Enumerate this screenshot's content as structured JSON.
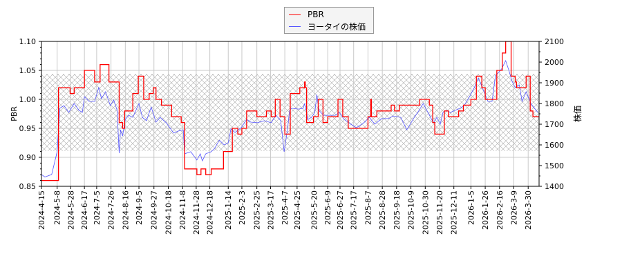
{
  "chart_data": {
    "type": "line",
    "title": "",
    "xlabel": "",
    "ylabel_left": "PBR",
    "ylabel_right": "株価",
    "xlim": [
      "2024-04-15",
      "2026-04-15"
    ],
    "ylim_left": [
      0.85,
      1.1
    ],
    "ylim_right": [
      1400,
      2100
    ],
    "yticks_left": [
      "0.85",
      "0.90",
      "0.95",
      "1.00",
      "1.05",
      "1.10"
    ],
    "yticks_right": [
      "1400",
      "1500",
      "1600",
      "1700",
      "1800",
      "1900",
      "2000",
      "2100"
    ],
    "xticks": [
      "2024-4-15",
      "2024-5-8",
      "2024-5-28",
      "2024-6-17",
      "2024-7-5",
      "2024-7-26",
      "2024-8-16",
      "2024-9-5",
      "2024-9-27",
      "2024-10-18",
      "2024-11-8",
      "2024-11-28",
      "2024-12-18",
      "2025-1-14",
      "2025-2-3",
      "2025-2-25",
      "2025-3-17",
      "2025-4-7",
      "2025-4-25",
      "2025-5-20",
      "2025-6-9",
      "2025-6-27",
      "2025-7-17",
      "2025-8-7",
      "2025-8-28",
      "2025-9-18",
      "2025-10-9",
      "2025-10-30",
      "2025-11-20",
      "2025-12-11",
      "2026-1-5",
      "2026-1-26",
      "2026-2-16",
      "2026-3-9",
      "2026-3-30"
    ],
    "grid": true,
    "legend_placement": "top-center",
    "hatched_band_pbr": [
      0.911,
      1.044
    ],
    "series": [
      {
        "name": "PBR",
        "axis": "left",
        "style": "step",
        "color": "#ff0000",
        "points": [
          [
            "2024-04-15",
            0.86
          ],
          [
            "2024-05-10",
            1.02
          ],
          [
            "2024-05-27",
            1.01
          ],
          [
            "2024-06-02",
            1.02
          ],
          [
            "2024-06-17",
            1.05
          ],
          [
            "2024-07-02",
            1.03
          ],
          [
            "2024-07-10",
            1.06
          ],
          [
            "2024-07-23",
            1.03
          ],
          [
            "2024-08-07",
            0.96
          ],
          [
            "2024-08-12",
            0.95
          ],
          [
            "2024-08-15",
            0.98
          ],
          [
            "2024-08-27",
            1.01
          ],
          [
            "2024-09-04",
            1.04
          ],
          [
            "2024-09-12",
            1.0
          ],
          [
            "2024-09-20",
            1.01
          ],
          [
            "2024-09-26",
            1.02
          ],
          [
            "2024-09-30",
            1.0
          ],
          [
            "2024-10-08",
            0.99
          ],
          [
            "2024-10-23",
            0.97
          ],
          [
            "2024-11-06",
            0.96
          ],
          [
            "2024-11-11",
            0.88
          ],
          [
            "2024-11-29",
            0.87
          ],
          [
            "2024-12-05",
            0.88
          ],
          [
            "2024-12-12",
            0.87
          ],
          [
            "2024-12-20",
            0.88
          ],
          [
            "2025-01-07",
            0.91
          ],
          [
            "2025-01-20",
            0.95
          ],
          [
            "2025-01-28",
            0.94
          ],
          [
            "2025-02-03",
            0.95
          ],
          [
            "2025-02-10",
            0.98
          ],
          [
            "2025-02-25",
            0.97
          ],
          [
            "2025-03-11",
            0.98
          ],
          [
            "2025-03-18",
            0.97
          ],
          [
            "2025-03-24",
            1.0
          ],
          [
            "2025-03-31",
            0.97
          ],
          [
            "2025-04-07",
            0.94
          ],
          [
            "2025-04-15",
            1.01
          ],
          [
            "2025-04-29",
            1.02
          ],
          [
            "2025-05-06",
            1.03
          ],
          [
            "2025-05-07",
            1.02
          ],
          [
            "2025-05-09",
            0.96
          ],
          [
            "2025-05-19",
            0.97
          ],
          [
            "2025-05-26",
            1.0
          ],
          [
            "2025-06-02",
            0.96
          ],
          [
            "2025-06-09",
            0.97
          ],
          [
            "2025-06-24",
            1.0
          ],
          [
            "2025-07-01",
            0.97
          ],
          [
            "2025-07-09",
            0.95
          ],
          [
            "2025-08-07",
            0.97
          ],
          [
            "2025-08-11",
            1.0
          ],
          [
            "2025-08-12",
            0.97
          ],
          [
            "2025-08-20",
            0.98
          ],
          [
            "2025-09-10",
            0.99
          ],
          [
            "2025-09-15",
            0.98
          ],
          [
            "2025-09-22",
            0.99
          ],
          [
            "2025-10-22",
            1.0
          ],
          [
            "2025-11-05",
            0.99
          ],
          [
            "2025-11-10",
            0.96
          ],
          [
            "2025-11-13",
            0.94
          ],
          [
            "2025-11-27",
            0.98
          ],
          [
            "2025-12-03",
            0.97
          ],
          [
            "2025-12-18",
            0.98
          ],
          [
            "2025-12-25",
            0.99
          ],
          [
            "2026-01-05",
            1.0
          ],
          [
            "2026-01-13",
            1.04
          ],
          [
            "2026-01-21",
            1.02
          ],
          [
            "2026-01-26",
            1.0
          ],
          [
            "2026-02-12",
            1.05
          ],
          [
            "2026-02-20",
            1.08
          ],
          [
            "2026-02-25",
            1.1
          ],
          [
            "2026-03-05",
            1.04
          ],
          [
            "2026-03-11",
            1.03
          ],
          [
            "2026-03-13",
            1.02
          ],
          [
            "2026-03-27",
            1.04
          ],
          [
            "2026-04-02",
            0.98
          ],
          [
            "2026-04-06",
            0.97
          ],
          [
            "2026-04-15",
            0.97
          ]
        ]
      },
      {
        "name": "ヨータイの株価",
        "axis": "right",
        "style": "line",
        "color": "#5555ff",
        "points": [
          [
            "2024-04-15",
            1457
          ],
          [
            "2024-04-20",
            1445
          ],
          [
            "2024-04-30",
            1457
          ],
          [
            "2024-05-08",
            1567
          ],
          [
            "2024-05-12",
            1777
          ],
          [
            "2024-05-18",
            1790
          ],
          [
            "2024-05-25",
            1757
          ],
          [
            "2024-06-02",
            1800
          ],
          [
            "2024-06-09",
            1767
          ],
          [
            "2024-06-14",
            1757
          ],
          [
            "2024-06-17",
            1833
          ],
          [
            "2024-06-24",
            1810
          ],
          [
            "2024-07-02",
            1810
          ],
          [
            "2024-07-08",
            1877
          ],
          [
            "2024-07-12",
            1823
          ],
          [
            "2024-07-18",
            1857
          ],
          [
            "2024-07-25",
            1790
          ],
          [
            "2024-07-30",
            1817
          ],
          [
            "2024-08-04",
            1767
          ],
          [
            "2024-08-07",
            1560
          ],
          [
            "2024-08-09",
            1673
          ],
          [
            "2024-08-12",
            1643
          ],
          [
            "2024-08-16",
            1723
          ],
          [
            "2024-08-21",
            1743
          ],
          [
            "2024-08-27",
            1733
          ],
          [
            "2024-09-05",
            1800
          ],
          [
            "2024-09-10",
            1733
          ],
          [
            "2024-09-16",
            1717
          ],
          [
            "2024-09-23",
            1783
          ],
          [
            "2024-09-30",
            1710
          ],
          [
            "2024-10-06",
            1733
          ],
          [
            "2024-10-15",
            1707
          ],
          [
            "2024-10-26",
            1657
          ],
          [
            "2024-11-02",
            1667
          ],
          [
            "2024-11-09",
            1673
          ],
          [
            "2024-11-11",
            1557
          ],
          [
            "2024-11-20",
            1567
          ],
          [
            "2024-11-29",
            1527
          ],
          [
            "2024-12-04",
            1557
          ],
          [
            "2024-12-07",
            1523
          ],
          [
            "2024-12-12",
            1557
          ],
          [
            "2024-12-20",
            1567
          ],
          [
            "2024-12-25",
            1583
          ],
          [
            "2025-01-01",
            1623
          ],
          [
            "2025-01-08",
            1600
          ],
          [
            "2025-01-14",
            1610
          ],
          [
            "2025-01-18",
            1677
          ],
          [
            "2025-01-24",
            1660
          ],
          [
            "2025-02-02",
            1683
          ],
          [
            "2025-02-10",
            1723
          ],
          [
            "2025-02-16",
            1710
          ],
          [
            "2025-02-26",
            1707
          ],
          [
            "2025-03-08",
            1717
          ],
          [
            "2025-03-18",
            1707
          ],
          [
            "2025-03-25",
            1743
          ],
          [
            "2025-04-01",
            1717
          ],
          [
            "2025-04-06",
            1567
          ],
          [
            "2025-04-11",
            1677
          ],
          [
            "2025-04-14",
            1767
          ],
          [
            "2025-04-17",
            1777
          ],
          [
            "2025-04-27",
            1773
          ],
          [
            "2025-05-04",
            1777
          ],
          [
            "2025-05-06",
            1800
          ],
          [
            "2025-05-11",
            1723
          ],
          [
            "2025-05-16",
            1733
          ],
          [
            "2025-05-21",
            1757
          ],
          [
            "2025-05-24",
            1843
          ],
          [
            "2025-05-27",
            1767
          ],
          [
            "2025-06-03",
            1743
          ],
          [
            "2025-06-10",
            1743
          ],
          [
            "2025-06-20",
            1743
          ],
          [
            "2025-06-26",
            1757
          ],
          [
            "2025-07-03",
            1723
          ],
          [
            "2025-07-13",
            1700
          ],
          [
            "2025-07-21",
            1683
          ],
          [
            "2025-08-01",
            1707
          ],
          [
            "2025-08-09",
            1733
          ],
          [
            "2025-08-17",
            1700
          ],
          [
            "2025-08-27",
            1727
          ],
          [
            "2025-09-06",
            1727
          ],
          [
            "2025-09-13",
            1740
          ],
          [
            "2025-09-24",
            1733
          ],
          [
            "2025-10-03",
            1673
          ],
          [
            "2025-10-14",
            1733
          ],
          [
            "2025-10-21",
            1767
          ],
          [
            "2025-10-27",
            1800
          ],
          [
            "2025-11-03",
            1757
          ],
          [
            "2025-11-11",
            1707
          ],
          [
            "2025-11-16",
            1733
          ],
          [
            "2025-11-21",
            1700
          ],
          [
            "2025-11-25",
            1757
          ],
          [
            "2025-11-30",
            1767
          ],
          [
            "2025-12-06",
            1757
          ],
          [
            "2025-12-13",
            1767
          ],
          [
            "2025-12-20",
            1777
          ],
          [
            "2025-12-26",
            1790
          ],
          [
            "2026-01-03",
            1833
          ],
          [
            "2026-01-10",
            1877
          ],
          [
            "2026-01-16",
            1923
          ],
          [
            "2026-01-23",
            1867
          ],
          [
            "2026-01-30",
            1810
          ],
          [
            "2026-02-05",
            1810
          ],
          [
            "2026-02-10",
            1933
          ],
          [
            "2026-02-19",
            1967
          ],
          [
            "2026-02-25",
            2007
          ],
          [
            "2026-03-02",
            1957
          ],
          [
            "2026-03-06",
            1910
          ],
          [
            "2026-03-11",
            1877
          ],
          [
            "2026-03-17",
            1890
          ],
          [
            "2026-03-21",
            1810
          ],
          [
            "2026-03-27",
            1857
          ],
          [
            "2026-04-03",
            1800
          ],
          [
            "2026-04-13",
            1757
          ]
        ]
      }
    ]
  }
}
